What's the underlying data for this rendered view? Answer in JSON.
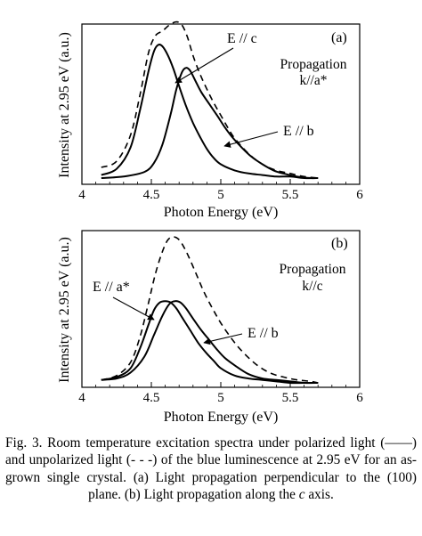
{
  "chart_data": [
    {
      "type": "line",
      "panel_label": "(a)",
      "xlabel": "Photon Energy (eV)",
      "ylabel": "Intensity at 2.95 eV (a.u.)",
      "xlim": [
        4,
        6
      ],
      "xticks": [
        "4",
        "4.5",
        "5",
        "5.5",
        "6"
      ],
      "xtick_values": [
        4,
        4.5,
        5,
        5.5,
        6
      ],
      "yticks_labeled": false,
      "grid": false,
      "condition": [
        "Propagation",
        "k//a*"
      ],
      "annotations": [
        "E // c",
        "E // b"
      ],
      "series": [
        {
          "style": "solid",
          "x": [
            4.14,
            4.25,
            4.35,
            4.42,
            4.48,
            4.52,
            4.55,
            4.58,
            4.62,
            4.66,
            4.7,
            4.75,
            4.8,
            4.85,
            4.9,
            4.95,
            5.0,
            5.1,
            5.2,
            5.3,
            5.4,
            5.5,
            5.6,
            5.7
          ],
          "y": [
            0.02,
            0.06,
            0.2,
            0.45,
            0.7,
            0.83,
            0.87,
            0.86,
            0.8,
            0.71,
            0.6,
            0.47,
            0.36,
            0.27,
            0.19,
            0.13,
            0.09,
            0.05,
            0.03,
            0.02,
            0.01,
            0.01,
            0.0,
            0.0
          ]
        },
        {
          "style": "solid",
          "x": [
            4.14,
            4.3,
            4.45,
            4.52,
            4.58,
            4.64,
            4.68,
            4.72,
            4.75,
            4.78,
            4.82,
            4.86,
            4.92,
            4.98,
            5.03,
            5.08,
            5.15,
            5.22,
            5.3,
            5.38,
            5.45,
            5.55,
            5.65,
            5.7
          ],
          "y": [
            0.0,
            0.01,
            0.04,
            0.1,
            0.22,
            0.42,
            0.58,
            0.69,
            0.72,
            0.7,
            0.63,
            0.56,
            0.48,
            0.4,
            0.33,
            0.27,
            0.2,
            0.14,
            0.09,
            0.05,
            0.03,
            0.01,
            0.0,
            0.0
          ]
        },
        {
          "style": "dashed",
          "x": [
            4.14,
            4.25,
            4.35,
            4.42,
            4.48,
            4.53,
            4.58,
            4.63,
            4.68,
            4.72,
            4.76,
            4.8,
            4.85,
            4.9,
            4.95,
            5.0,
            5.05,
            5.1,
            5.2,
            5.3,
            5.4,
            5.5,
            5.6,
            5.7
          ],
          "y": [
            0.07,
            0.11,
            0.28,
            0.55,
            0.82,
            0.93,
            0.96,
            1.0,
            1.02,
            1.0,
            0.92,
            0.8,
            0.68,
            0.58,
            0.49,
            0.41,
            0.33,
            0.26,
            0.16,
            0.09,
            0.05,
            0.03,
            0.01,
            0.0
          ]
        }
      ]
    },
    {
      "type": "line",
      "panel_label": "(b)",
      "xlabel": "Photon Energy (eV)",
      "ylabel": "Intensity at 2.95 eV (a.u.)",
      "xlim": [
        4,
        6
      ],
      "xticks": [
        "4",
        "4.5",
        "5",
        "5.5",
        "6"
      ],
      "xtick_values": [
        4,
        4.5,
        5,
        5.5,
        6
      ],
      "yticks_labeled": false,
      "grid": false,
      "condition": [
        "Propagation",
        "k//c"
      ],
      "annotations": [
        "E // a*",
        "E // b"
      ],
      "series": [
        {
          "style": "solid",
          "x": [
            4.14,
            4.25,
            4.35,
            4.42,
            4.48,
            4.52,
            4.56,
            4.6,
            4.64,
            4.68,
            4.72,
            4.78,
            4.84,
            4.9,
            4.95,
            5.0,
            5.1,
            5.2,
            5.3,
            5.4,
            5.5,
            5.6,
            5.7
          ],
          "y": [
            0.02,
            0.04,
            0.1,
            0.24,
            0.4,
            0.5,
            0.55,
            0.56,
            0.55,
            0.51,
            0.45,
            0.36,
            0.27,
            0.2,
            0.15,
            0.1,
            0.05,
            0.03,
            0.02,
            0.01,
            0.0,
            0.0,
            0.0
          ]
        },
        {
          "style": "solid",
          "x": [
            4.14,
            4.25,
            4.35,
            4.45,
            4.52,
            4.58,
            4.63,
            4.67,
            4.71,
            4.75,
            4.8,
            4.86,
            4.92,
            4.98,
            5.03,
            5.1,
            5.2,
            5.3,
            5.4,
            5.5,
            5.6,
            5.7
          ],
          "y": [
            0.02,
            0.03,
            0.07,
            0.18,
            0.33,
            0.46,
            0.54,
            0.56,
            0.55,
            0.51,
            0.44,
            0.36,
            0.29,
            0.22,
            0.17,
            0.12,
            0.06,
            0.03,
            0.02,
            0.01,
            0.0,
            0.0
          ]
        },
        {
          "style": "dashed",
          "x": [
            4.14,
            4.25,
            4.35,
            4.42,
            4.48,
            4.53,
            4.58,
            4.62,
            4.66,
            4.7,
            4.74,
            4.78,
            4.83,
            4.88,
            4.94,
            5.0,
            5.08,
            5.15,
            5.25,
            5.35,
            5.45,
            5.55,
            5.65,
            5.7
          ],
          "y": [
            0.02,
            0.05,
            0.14,
            0.32,
            0.55,
            0.75,
            0.9,
            0.98,
            1.0,
            0.98,
            0.92,
            0.84,
            0.73,
            0.62,
            0.51,
            0.41,
            0.3,
            0.22,
            0.13,
            0.07,
            0.04,
            0.02,
            0.01,
            0.0
          ]
        }
      ]
    }
  ],
  "caption": {
    "part1": "Fig. 3. Room temperature excitation spectra under polarized light (——) and unpolarized light (- - -) of the blue luminescence at 2.95 eV for an as-grown single crystal. (a) Light propagation perpendicular to the (100) plane. (b) Light propagation along the ",
    "italic": "c",
    "part2": " axis."
  }
}
